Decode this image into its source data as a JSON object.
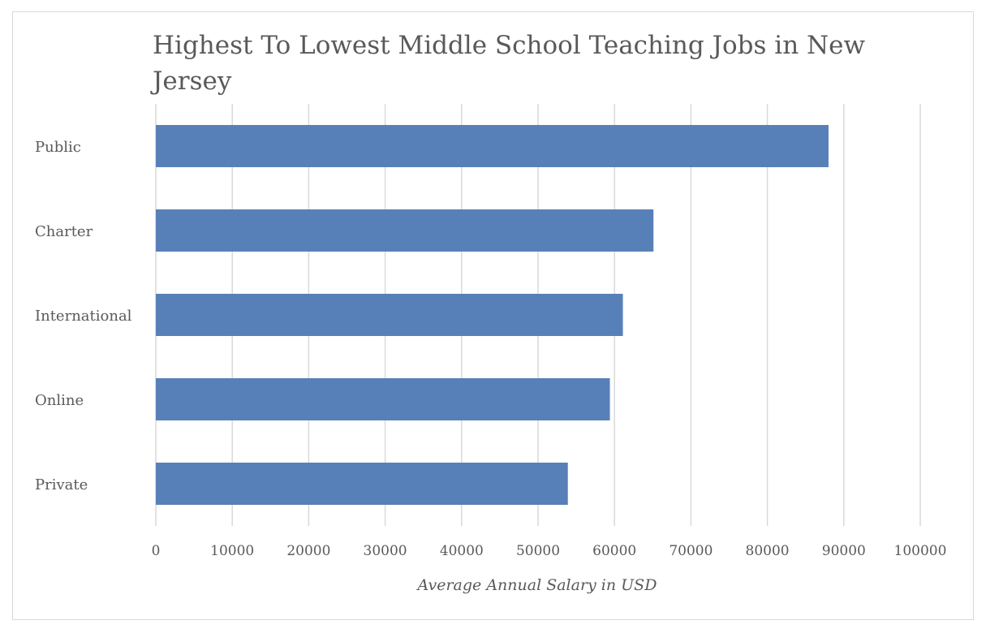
{
  "chart_data": {
    "type": "bar",
    "orientation": "horizontal",
    "title": "Highest To Lowest Middle School Teaching Jobs in New Jersey",
    "xlabel": "Average Annual Salary in USD",
    "ylabel": "",
    "categories": [
      "Public",
      "Charter",
      "International",
      "Online",
      "Private"
    ],
    "values": [
      88000,
      65100,
      61100,
      59400,
      53900
    ],
    "xlim": [
      0,
      100000
    ],
    "xticks": [
      "0",
      "10000",
      "20000",
      "30000",
      "40000",
      "50000",
      "60000",
      "70000",
      "80000",
      "90000",
      "100000"
    ],
    "grid": "vertical",
    "legend": "none",
    "bar_color": "#5880b8"
  }
}
